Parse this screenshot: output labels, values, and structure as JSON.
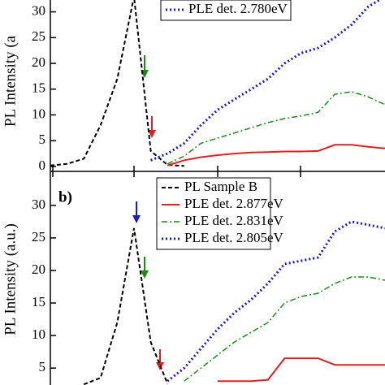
{
  "chart_data": [
    {
      "type": "line",
      "ylabel": "PL Intensity (a",
      "ylim": [
        -0.8,
        32.3
      ],
      "yticks": [
        0,
        5,
        10,
        15,
        20,
        25,
        30
      ],
      "legend": "upper right",
      "series": [
        {
          "name": null,
          "color": "#000000",
          "style": "dashed",
          "values": [
            0.2,
            0.5,
            1.5,
            8,
            17,
            33,
            3,
            0.3,
            0.1,
            null,
            null,
            null,
            null,
            null,
            null,
            null,
            null,
            null,
            null,
            null,
            null
          ]
        },
        {
          "name": null,
          "color": "#e02020",
          "style": "solid",
          "values": [
            null,
            null,
            null,
            null,
            null,
            null,
            null,
            0.2,
            1.2,
            1.8,
            2.2,
            2.5,
            2.7,
            2.8,
            2.9,
            2.9,
            3,
            4.2,
            4.2,
            3.8,
            3.5
          ]
        },
        {
          "name": null,
          "color": "#1a8a1a",
          "style": "dashdot",
          "values": [
            null,
            null,
            null,
            null,
            null,
            null,
            null,
            0.5,
            2,
            4.5,
            5.5,
            6.5,
            7.5,
            8.5,
            9.3,
            9.8,
            10.5,
            14,
            14.5,
            13.5,
            12
          ]
        },
        {
          "name": "PLE det. 2.780eV",
          "color": "#1a1acc",
          "style": "dotted",
          "values": [
            null,
            null,
            null,
            null,
            null,
            null,
            1.2,
            2.5,
            4.5,
            8,
            11,
            13,
            15,
            17,
            20,
            22,
            23,
            25,
            27.5,
            31,
            33
          ]
        }
      ]
    },
    {
      "type": "line",
      "panel": "b)",
      "ylabel": "PL Intensity (a.u.)",
      "ylim": [
        2.4,
        35.1
      ],
      "yticks": [
        5,
        10,
        15,
        20,
        25,
        30
      ],
      "legend": "upper center",
      "series": [
        {
          "name": "PL Sample B",
          "color": "#000000",
          "style": "dashed",
          "values": [
            null,
            null,
            2.5,
            3.5,
            12,
            26.5,
            9,
            2.6,
            null,
            null,
            null,
            null,
            null,
            null,
            null,
            null,
            null,
            null,
            null,
            null,
            null
          ]
        },
        {
          "name": "PLE det. 2.877eV",
          "color": "#e02020",
          "style": "solid",
          "values": [
            null,
            null,
            null,
            null,
            null,
            null,
            null,
            null,
            null,
            null,
            3,
            3,
            3,
            3.2,
            6.5,
            6.5,
            6.5,
            5.5,
            5.5,
            5.5,
            5.5
          ]
        },
        {
          "name": "PLE det. 2.831eV",
          "color": "#1a8a1a",
          "style": "dashdot",
          "values": [
            null,
            null,
            null,
            null,
            null,
            null,
            null,
            null,
            3,
            5,
            7,
            9,
            10.5,
            12,
            15,
            16,
            16.5,
            18,
            19,
            19,
            18.5
          ]
        },
        {
          "name": "PLE det. 2.805eV",
          "color": "#1a1acc",
          "style": "dotted",
          "values": [
            null,
            null,
            null,
            null,
            null,
            null,
            null,
            3,
            5,
            8,
            11,
            13.5,
            15.5,
            18,
            21,
            21.5,
            22,
            26,
            27.5,
            27,
            26.5
          ]
        }
      ]
    }
  ]
}
